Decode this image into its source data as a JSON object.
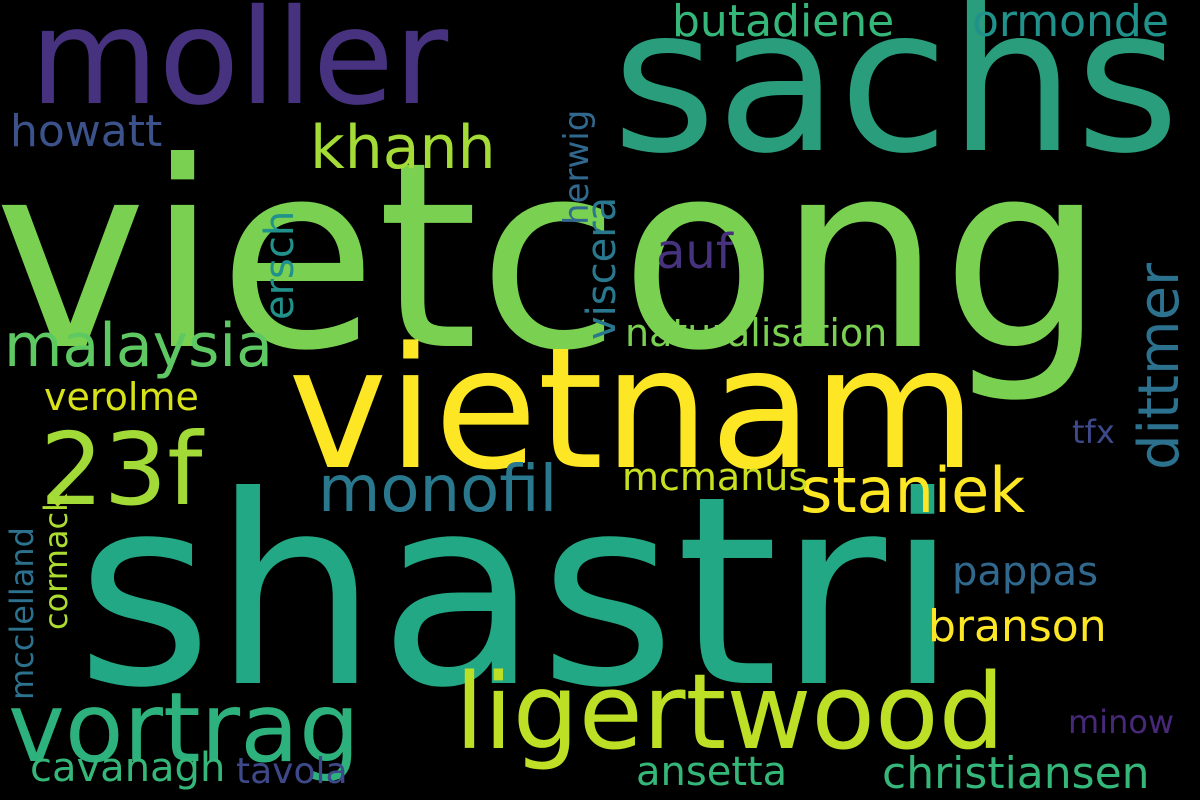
{
  "words": [
    {
      "text": "vietcong",
      "color": "#7ad151"
    },
    {
      "text": "shastri",
      "color": "#22a884"
    },
    {
      "text": "vietnam",
      "color": "#fde725"
    },
    {
      "text": "sachs",
      "color": "#2a9d7c"
    },
    {
      "text": "moller",
      "color": "#46327e"
    },
    {
      "text": "ligertwood",
      "color": "#bddf26"
    },
    {
      "text": "vortrag",
      "color": "#2db27d"
    },
    {
      "text": "23f",
      "color": "#a2da37"
    },
    {
      "text": "monofil",
      "color": "#2a788e"
    },
    {
      "text": "malaysia",
      "color": "#5ec962"
    },
    {
      "text": "staniek",
      "color": "#fde725"
    },
    {
      "text": "khanh",
      "color": "#a5db36"
    },
    {
      "text": "howatt",
      "color": "#3b528b"
    },
    {
      "text": "butadiene",
      "color": "#35b779"
    },
    {
      "text": "ormonde",
      "color": "#21918c"
    },
    {
      "text": "dittmer",
      "color": "#2c728e"
    },
    {
      "text": "christiansen",
      "color": "#35b779"
    },
    {
      "text": "branson",
      "color": "#fde725"
    },
    {
      "text": "pappas",
      "color": "#31688e"
    },
    {
      "text": "naturalisation",
      "color": "#7ad151"
    },
    {
      "text": "ansetta",
      "color": "#35b779"
    },
    {
      "text": "mcmanus",
      "color": "#c8e020"
    },
    {
      "text": "cavanagh",
      "color": "#35b779"
    },
    {
      "text": "tavola",
      "color": "#3e4989"
    },
    {
      "text": "viscera",
      "color": "#2a788e"
    },
    {
      "text": "ersch",
      "color": "#21918c"
    },
    {
      "text": "herwig",
      "color": "#31688e"
    },
    {
      "text": "auf",
      "color": "#46327e"
    },
    {
      "text": "verolme",
      "color": "#d8e219"
    },
    {
      "text": "mcclelland",
      "color": "#2c728e"
    },
    {
      "text": "cormack",
      "color": "#addc30"
    },
    {
      "text": "minow",
      "color": "#482878"
    },
    {
      "text": "tfx",
      "color": "#3e4989"
    },
    {
      "text": "moller",
      "color": "#46327e"
    }
  ]
}
